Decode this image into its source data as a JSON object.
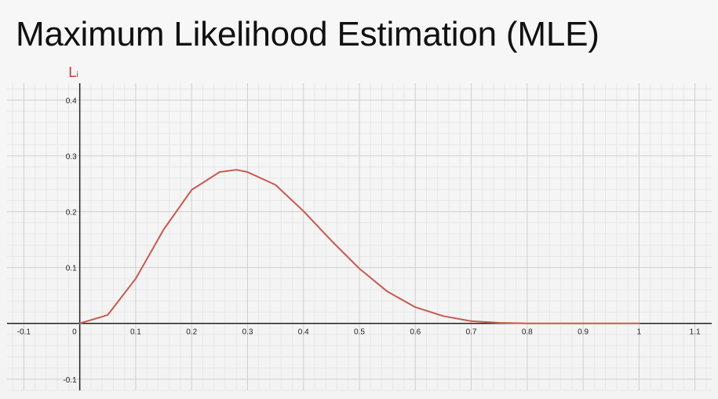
{
  "title": "Maximum Likelihood Estimation (MLE)",
  "y_axis_mark": "Lᵢ",
  "chart_data": {
    "type": "line",
    "title": "Maximum Likelihood Estimation (MLE)",
    "xlabel": "",
    "ylabel": "Lᵢ",
    "xlim": [
      -0.13,
      1.13
    ],
    "ylim": [
      -0.12,
      0.43
    ],
    "grid": true,
    "x_ticks": [
      -0.1,
      0,
      0.1,
      0.2,
      0.3,
      0.4,
      0.5,
      0.6,
      0.7,
      0.8,
      0.9,
      1,
      1.1
    ],
    "x_tick_labels": [
      "-0.1",
      "0",
      "0.1",
      "0.2",
      "0.3",
      "0.4",
      "0.5",
      "0.6",
      "0.7",
      "0.8",
      "0.9",
      "1",
      "1.1"
    ],
    "y_ticks": [
      -0.1,
      0.1,
      0.2,
      0.3,
      0.4
    ],
    "y_tick_labels": [
      "-0.1",
      "0.1",
      "0.2",
      "0.3",
      "0.4"
    ],
    "series": [
      {
        "color": "#c85a4e",
        "x": [
          0,
          0.05,
          0.1,
          0.15,
          0.2,
          0.25,
          0.28,
          0.3,
          0.35,
          0.4,
          0.45,
          0.5,
          0.55,
          0.6,
          0.65,
          0.7,
          0.75,
          0.8,
          0.85,
          0.9,
          0.95,
          1
        ],
        "y": [
          0,
          0.015,
          0.08,
          0.168,
          0.239,
          0.271,
          0.275,
          0.271,
          0.248,
          0.201,
          0.148,
          0.098,
          0.057,
          0.029,
          0.013,
          0.004,
          0.001,
          0,
          0,
          0,
          0,
          0
        ]
      }
    ]
  }
}
